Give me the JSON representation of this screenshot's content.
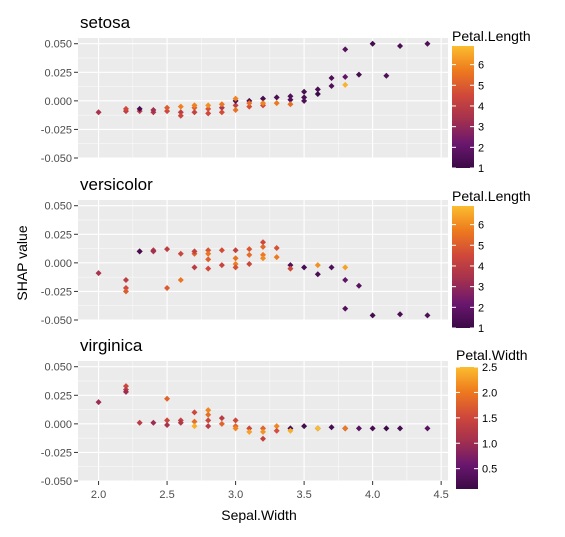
{
  "chart_data": {
    "type": "scatter",
    "xlabel": "Sepal.Width",
    "ylabel": "SHAP value",
    "xlim": [
      1.85,
      4.55
    ],
    "x_ticks": [
      2.0,
      2.5,
      3.0,
      3.5,
      4.0,
      4.5
    ],
    "x_tick_labels": [
      "2.0",
      "2.5",
      "3.0",
      "3.5",
      "4.0",
      "4.5"
    ],
    "ylim": [
      -0.05,
      0.055
    ],
    "y_ticks": [
      -0.05,
      -0.025,
      0.0,
      0.025,
      0.05
    ],
    "y_tick_labels": [
      "-0.050",
      "-0.025",
      "0.000",
      "0.025",
      "0.050"
    ],
    "grid": true,
    "colormap": [
      "#3b0a46",
      "#6a176e",
      "#a4314e",
      "#d0493a",
      "#ee7a1e",
      "#fbbd2f"
    ],
    "panels": [
      {
        "title": "setosa",
        "legend": {
          "title": "Petal.Length",
          "range": [
            1,
            6.9
          ],
          "ticks": [
            1,
            2,
            3,
            4,
            5,
            6
          ],
          "tick_labels": [
            "1",
            "2",
            "3",
            "4",
            "5",
            "6"
          ]
        },
        "points": [
          [
            2.0,
            -0.01,
            3.5
          ],
          [
            2.2,
            -0.009,
            4.0
          ],
          [
            2.2,
            -0.007,
            4.5
          ],
          [
            2.3,
            -0.009,
            4.0
          ],
          [
            2.3,
            -0.007,
            1.3
          ],
          [
            2.4,
            -0.01,
            3.7
          ],
          [
            2.4,
            -0.008,
            3.3
          ],
          [
            2.5,
            -0.009,
            4.5
          ],
          [
            2.5,
            -0.006,
            5.0
          ],
          [
            2.6,
            -0.005,
            5.8
          ],
          [
            2.6,
            -0.01,
            4.0
          ],
          [
            2.6,
            -0.013,
            4.4
          ],
          [
            2.7,
            -0.006,
            5.1
          ],
          [
            2.7,
            -0.01,
            4.2
          ],
          [
            2.7,
            -0.004,
            5.8
          ],
          [
            2.8,
            -0.007,
            4.8
          ],
          [
            2.8,
            -0.011,
            4.5
          ],
          [
            2.8,
            -0.004,
            6.1
          ],
          [
            2.9,
            -0.006,
            3.6
          ],
          [
            2.9,
            -0.01,
            4.6
          ],
          [
            2.9,
            -0.003,
            5.6
          ],
          [
            3.0,
            -0.004,
            4.2
          ],
          [
            3.0,
            0.0,
            1.4
          ],
          [
            3.0,
            -0.008,
            5.5
          ],
          [
            3.0,
            0.002,
            5.9
          ],
          [
            3.1,
            0.0,
            1.5
          ],
          [
            3.1,
            -0.005,
            4.7
          ],
          [
            3.1,
            -0.002,
            5.5
          ],
          [
            3.2,
            0.002,
            1.3
          ],
          [
            3.2,
            -0.004,
            4.5
          ],
          [
            3.2,
            -0.002,
            5.9
          ],
          [
            3.3,
            0.003,
            1.4
          ],
          [
            3.3,
            -0.002,
            5.7
          ],
          [
            3.4,
            0.004,
            1.5
          ],
          [
            3.4,
            0.001,
            1.6
          ],
          [
            3.4,
            -0.003,
            5.4
          ],
          [
            3.5,
            0.008,
            1.3
          ],
          [
            3.5,
            0.003,
            1.4
          ],
          [
            3.5,
            0.0,
            1.5
          ],
          [
            3.6,
            0.01,
            1.4
          ],
          [
            3.6,
            0.006,
            1.0
          ],
          [
            3.7,
            0.02,
            1.5
          ],
          [
            3.7,
            0.013,
            1.5
          ],
          [
            3.8,
            0.045,
            1.7
          ],
          [
            3.8,
            0.021,
            1.9
          ],
          [
            3.8,
            0.014,
            6.7
          ],
          [
            3.9,
            0.023,
            1.3
          ],
          [
            4.0,
            0.05,
            1.2
          ],
          [
            4.1,
            0.022,
            1.5
          ],
          [
            4.2,
            0.048,
            1.4
          ],
          [
            4.4,
            0.05,
            1.5
          ]
        ]
      },
      {
        "title": "versicolor",
        "legend": {
          "title": "Petal.Length",
          "range": [
            1,
            6.9
          ],
          "ticks": [
            1,
            2,
            3,
            4,
            5,
            6
          ],
          "tick_labels": [
            "1",
            "2",
            "3",
            "4",
            "5",
            "6"
          ]
        },
        "points": [
          [
            2.0,
            -0.009,
            3.5
          ],
          [
            2.2,
            -0.015,
            4.0
          ],
          [
            2.2,
            -0.022,
            4.5
          ],
          [
            2.2,
            -0.025,
            5.0
          ],
          [
            2.3,
            0.01,
            4.4
          ],
          [
            2.3,
            0.01,
            1.3
          ],
          [
            2.4,
            0.011,
            3.8
          ],
          [
            2.4,
            0.01,
            3.3
          ],
          [
            2.5,
            0.012,
            4.0
          ],
          [
            2.5,
            -0.022,
            5.0
          ],
          [
            2.6,
            0.008,
            4.4
          ],
          [
            2.6,
            -0.015,
            5.6
          ],
          [
            2.7,
            0.008,
            5.1
          ],
          [
            2.7,
            0.01,
            4.2
          ],
          [
            2.7,
            -0.004,
            3.9
          ],
          [
            2.8,
            0.011,
            4.8
          ],
          [
            2.8,
            0.008,
            5.6
          ],
          [
            2.8,
            0.003,
            5.1
          ],
          [
            2.8,
            -0.005,
            4.5
          ],
          [
            2.9,
            0.011,
            4.6
          ],
          [
            2.9,
            -0.002,
            4.3
          ],
          [
            3.0,
            0.011,
            4.2
          ],
          [
            3.0,
            0.004,
            5.5
          ],
          [
            3.0,
            -0.001,
            5.8
          ],
          [
            3.0,
            -0.004,
            4.7
          ],
          [
            3.1,
            0.012,
            4.9
          ],
          [
            3.1,
            0.007,
            5.4
          ],
          [
            3.1,
            -0.001,
            4.4
          ],
          [
            3.2,
            0.018,
            4.5
          ],
          [
            3.2,
            0.014,
            5.3
          ],
          [
            3.2,
            0.007,
            5.7
          ],
          [
            3.2,
            0.004,
            6.0
          ],
          [
            3.3,
            0.013,
            4.7
          ],
          [
            3.3,
            0.005,
            5.7
          ],
          [
            3.4,
            -0.002,
            1.5
          ],
          [
            3.4,
            -0.005,
            4.5
          ],
          [
            3.5,
            -0.004,
            1.3
          ],
          [
            3.6,
            -0.01,
            1.4
          ],
          [
            3.6,
            -0.002,
            6.1
          ],
          [
            3.7,
            -0.004,
            1.5
          ],
          [
            3.8,
            -0.004,
            6.4
          ],
          [
            3.8,
            -0.015,
            1.9
          ],
          [
            3.8,
            -0.04,
            1.6
          ],
          [
            3.9,
            -0.02,
            1.7
          ],
          [
            4.0,
            -0.046,
            1.2
          ],
          [
            4.2,
            -0.045,
            1.4
          ],
          [
            4.4,
            -0.046,
            1.5
          ]
        ]
      },
      {
        "title": "virginica",
        "legend": {
          "title": "Petal.Width",
          "range": [
            0.1,
            2.5
          ],
          "ticks": [
            0.5,
            1.0,
            1.5,
            2.0,
            2.5
          ],
          "tick_labels": [
            "0.5",
            "1.0",
            "1.5",
            "2.0",
            "2.5"
          ]
        },
        "points": [
          [
            2.0,
            0.019,
            1.0
          ],
          [
            2.2,
            0.033,
            1.5
          ],
          [
            2.2,
            0.03,
            1.3
          ],
          [
            2.2,
            0.028,
            1.0
          ],
          [
            2.3,
            0.001,
            1.3
          ],
          [
            2.4,
            0.001,
            1.0
          ],
          [
            2.5,
            0.022,
            1.8
          ],
          [
            2.5,
            0.003,
            1.5
          ],
          [
            2.5,
            -0.001,
            1.1
          ],
          [
            2.6,
            0.003,
            1.4
          ],
          [
            2.6,
            0.001,
            1.2
          ],
          [
            2.7,
            0.01,
            1.5
          ],
          [
            2.7,
            0.002,
            1.9
          ],
          [
            2.7,
            -0.002,
            2.4
          ],
          [
            2.8,
            0.012,
            2.1
          ],
          [
            2.8,
            0.008,
            1.9
          ],
          [
            2.8,
            0.003,
            1.5
          ],
          [
            2.8,
            -0.002,
            1.3
          ],
          [
            2.9,
            0.005,
            1.3
          ],
          [
            2.9,
            0.0,
            1.8
          ],
          [
            3.0,
            0.003,
            1.5
          ],
          [
            3.0,
            -0.002,
            1.8
          ],
          [
            3.0,
            -0.004,
            2.1
          ],
          [
            3.1,
            -0.004,
            1.5
          ],
          [
            3.1,
            -0.007,
            2.3
          ],
          [
            3.2,
            -0.004,
            1.8
          ],
          [
            3.2,
            -0.007,
            2.2
          ],
          [
            3.2,
            -0.013,
            1.4
          ],
          [
            3.3,
            -0.002,
            2.1
          ],
          [
            3.3,
            -0.006,
            1.6
          ],
          [
            3.4,
            -0.004,
            0.2
          ],
          [
            3.4,
            -0.006,
            2.4
          ],
          [
            3.5,
            -0.002,
            0.2
          ],
          [
            3.6,
            -0.004,
            0.2
          ],
          [
            3.6,
            -0.004,
            2.5
          ],
          [
            3.7,
            -0.003,
            0.2
          ],
          [
            3.8,
            -0.004,
            0.3
          ],
          [
            3.8,
            -0.004,
            2.0
          ],
          [
            3.9,
            -0.004,
            0.4
          ],
          [
            4.0,
            -0.004,
            0.2
          ],
          [
            4.1,
            -0.004,
            0.1
          ],
          [
            4.2,
            -0.004,
            0.2
          ],
          [
            4.4,
            -0.004,
            0.4
          ]
        ]
      }
    ]
  }
}
